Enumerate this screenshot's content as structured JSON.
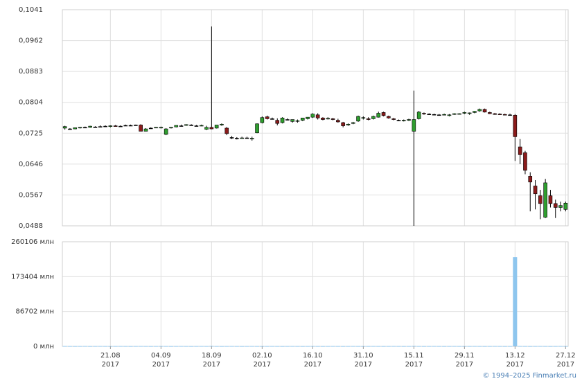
{
  "chart_data": [
    {
      "type": "candlestick",
      "open": [
        0.0738,
        0.0736,
        0.0736,
        0.0739,
        0.074,
        0.074,
        0.0741,
        0.0742,
        0.0743,
        0.0742,
        0.0744,
        0.0743,
        0.0745,
        0.0745,
        0.0746,
        0.0746,
        0.073,
        0.0738,
        0.0739,
        0.0739,
        0.0722,
        0.0739,
        0.0741,
        0.0744,
        0.0745,
        0.0746,
        0.0744,
        0.0744,
        0.0735,
        0.074,
        0.0738,
        0.0746,
        0.0738,
        0.0714,
        0.0712,
        0.0712,
        0.0713,
        0.071,
        0.0726,
        0.0752,
        0.0767,
        0.0762,
        0.0758,
        0.0752,
        0.076,
        0.0755,
        0.0756,
        0.0758,
        0.0762,
        0.0766,
        0.0772,
        0.0764,
        0.0762,
        0.0762,
        0.0758,
        0.0752,
        0.0746,
        0.075,
        0.0756,
        0.0764,
        0.0762,
        0.0762,
        0.0766,
        0.0778,
        0.0768,
        0.0762,
        0.0758,
        0.0757,
        0.0758,
        0.073,
        0.0762,
        0.0776,
        0.0774,
        0.0773,
        0.0772,
        0.0772,
        0.077,
        0.0773,
        0.0774,
        0.0776,
        0.0776,
        0.0778,
        0.0782,
        0.0786,
        0.0778,
        0.0775,
        0.0774,
        0.0773,
        0.0772,
        0.0771,
        0.069,
        0.0675,
        0.0615,
        0.059,
        0.0565,
        0.051,
        0.0565,
        0.0545,
        0.0535,
        0.053
      ],
      "high": [
        0.0744,
        0.0738,
        0.0739,
        0.0741,
        0.0742,
        0.0744,
        0.0743,
        0.0745,
        0.0745,
        0.0745,
        0.0746,
        0.0745,
        0.0747,
        0.0747,
        0.0747,
        0.0748,
        0.0738,
        0.074,
        0.0741,
        0.0742,
        0.0738,
        0.0741,
        0.0745,
        0.0747,
        0.0748,
        0.0748,
        0.0746,
        0.0747,
        0.0744,
        0.0998,
        0.0746,
        0.075,
        0.0741,
        0.0718,
        0.0715,
        0.0716,
        0.0716,
        0.0716,
        0.075,
        0.0768,
        0.077,
        0.0765,
        0.0763,
        0.0766,
        0.0763,
        0.076,
        0.076,
        0.0762,
        0.0766,
        0.0776,
        0.0776,
        0.0766,
        0.0766,
        0.0764,
        0.0762,
        0.0754,
        0.075,
        0.0754,
        0.077,
        0.0768,
        0.0766,
        0.077,
        0.078,
        0.078,
        0.077,
        0.0764,
        0.076,
        0.076,
        0.0762,
        0.0834,
        0.0782,
        0.0778,
        0.0776,
        0.0775,
        0.0774,
        0.0775,
        0.0774,
        0.0776,
        0.0776,
        0.078,
        0.0778,
        0.0782,
        0.0788,
        0.0788,
        0.078,
        0.0777,
        0.0776,
        0.0775,
        0.0775,
        0.0774,
        0.071,
        0.068,
        0.0625,
        0.0605,
        0.058,
        0.0608,
        0.058,
        0.0555,
        0.055,
        0.055
      ],
      "low": [
        0.0734,
        0.0734,
        0.0735,
        0.0737,
        0.0738,
        0.0739,
        0.074,
        0.0741,
        0.0741,
        0.074,
        0.0742,
        0.0742,
        0.0744,
        0.0744,
        0.0745,
        0.073,
        0.073,
        0.0737,
        0.0738,
        0.0737,
        0.072,
        0.0737,
        0.074,
        0.0742,
        0.0744,
        0.0745,
        0.0743,
        0.0743,
        0.0733,
        0.0735,
        0.0737,
        0.0744,
        0.072,
        0.071,
        0.0709,
        0.0711,
        0.0711,
        0.0706,
        0.0725,
        0.075,
        0.076,
        0.076,
        0.0745,
        0.075,
        0.0758,
        0.0752,
        0.0752,
        0.0756,
        0.076,
        0.0764,
        0.076,
        0.0758,
        0.076,
        0.0758,
        0.0752,
        0.074,
        0.0744,
        0.0748,
        0.0754,
        0.076,
        0.0758,
        0.076,
        0.0765,
        0.0768,
        0.0762,
        0.0758,
        0.0756,
        0.0755,
        0.0756,
        0.0488,
        0.076,
        0.0772,
        0.0772,
        0.0771,
        0.077,
        0.0771,
        0.0768,
        0.0772,
        0.0773,
        0.0774,
        0.0772,
        0.0776,
        0.078,
        0.0778,
        0.0774,
        0.0772,
        0.0772,
        0.0771,
        0.0771,
        0.0654,
        0.0646,
        0.062,
        0.0525,
        0.053,
        0.0505,
        0.0508,
        0.0535,
        0.0508,
        0.0525,
        0.0525
      ],
      "close": [
        0.0742,
        0.0736,
        0.0739,
        0.074,
        0.074,
        0.0743,
        0.0741,
        0.0742,
        0.0743,
        0.0744,
        0.0742,
        0.0743,
        0.0745,
        0.0745,
        0.0746,
        0.073,
        0.0736,
        0.0738,
        0.074,
        0.074,
        0.0736,
        0.074,
        0.0745,
        0.0744,
        0.0747,
        0.0746,
        0.0744,
        0.0745,
        0.074,
        0.0736,
        0.0746,
        0.0748,
        0.0724,
        0.0714,
        0.0712,
        0.0713,
        0.0713,
        0.0712,
        0.0749,
        0.0765,
        0.0762,
        0.0762,
        0.075,
        0.0764,
        0.076,
        0.076,
        0.0757,
        0.0764,
        0.0766,
        0.0774,
        0.0764,
        0.076,
        0.0763,
        0.076,
        0.0754,
        0.0744,
        0.0748,
        0.0752,
        0.0768,
        0.0765,
        0.076,
        0.0768,
        0.0776,
        0.077,
        0.0764,
        0.076,
        0.0758,
        0.0758,
        0.076,
        0.076,
        0.0779,
        0.0775,
        0.0774,
        0.0773,
        0.0772,
        0.0773,
        0.0772,
        0.0775,
        0.0775,
        0.0778,
        0.0777,
        0.0781,
        0.0786,
        0.0779,
        0.0775,
        0.0773,
        0.0773,
        0.0772,
        0.0772,
        0.0716,
        0.067,
        0.063,
        0.06,
        0.057,
        0.0545,
        0.0598,
        0.0545,
        0.0535,
        0.054,
        0.0546
      ],
      "up_color": "#2f9e2f",
      "down_color": "#8b1b1b",
      "ylim": [
        0.0488,
        0.1041
      ],
      "yticks": [
        {
          "value": 0.0488,
          "label": "0,0488"
        },
        {
          "value": 0.0567,
          "label": "0,0567"
        },
        {
          "value": 0.0646,
          "label": "0,0646"
        },
        {
          "value": 0.0725,
          "label": "0,0725"
        },
        {
          "value": 0.0804,
          "label": "0,0804"
        },
        {
          "value": 0.0883,
          "label": "0,0883"
        },
        {
          "value": 0.0962,
          "label": "0,0962"
        },
        {
          "value": 0.1041,
          "label": "0,1041"
        }
      ],
      "grid": true
    },
    {
      "type": "bar",
      "categories": [
        null,
        null,
        null,
        null,
        null,
        null,
        null,
        null,
        null,
        [
          "21.08",
          "2017"
        ],
        null,
        null,
        null,
        null,
        null,
        null,
        null,
        null,
        null,
        [
          "04.09",
          "2017"
        ],
        null,
        null,
        null,
        null,
        null,
        null,
        null,
        null,
        null,
        [
          "18.09",
          "2017"
        ],
        null,
        null,
        null,
        null,
        null,
        null,
        null,
        null,
        null,
        [
          "02.10",
          "2017"
        ],
        null,
        null,
        null,
        null,
        null,
        null,
        null,
        null,
        null,
        [
          "16.10",
          "2017"
        ],
        null,
        null,
        null,
        null,
        null,
        null,
        null,
        null,
        null,
        [
          "31.10",
          "2017"
        ],
        null,
        null,
        null,
        null,
        null,
        null,
        null,
        null,
        null,
        [
          "15.11",
          "2017"
        ],
        null,
        null,
        null,
        null,
        null,
        null,
        null,
        null,
        null,
        [
          "29.11",
          "2017"
        ],
        null,
        null,
        null,
        null,
        null,
        null,
        null,
        null,
        null,
        [
          "13.12",
          "2017"
        ],
        null,
        null,
        null,
        null,
        null,
        null,
        null,
        null,
        null,
        [
          "27.12",
          "2017"
        ]
      ],
      "values": [
        900,
        800,
        700,
        800,
        900,
        700,
        800,
        900,
        800,
        700,
        800,
        900,
        800,
        700,
        800,
        900,
        800,
        700,
        800,
        900,
        800,
        700,
        800,
        900,
        800,
        700,
        800,
        900,
        800,
        1200,
        800,
        700,
        800,
        900,
        800,
        700,
        800,
        900,
        800,
        700,
        800,
        900,
        800,
        700,
        800,
        900,
        800,
        700,
        800,
        900,
        800,
        700,
        800,
        900,
        800,
        700,
        800,
        900,
        800,
        700,
        800,
        900,
        800,
        700,
        800,
        900,
        800,
        700,
        800,
        1200,
        800,
        700,
        800,
        900,
        800,
        700,
        800,
        900,
        800,
        700,
        800,
        900,
        800,
        700,
        800,
        900,
        800,
        700,
        800,
        222000,
        900,
        800,
        700,
        800,
        900,
        800,
        700,
        800,
        900,
        800
      ],
      "color": "#8ec6ee",
      "ylim": [
        0,
        260106
      ],
      "yticks": [
        {
          "value": 0,
          "label": "0 млн"
        },
        {
          "value": 86702,
          "label": "86702 млн"
        },
        {
          "value": 173404,
          "label": "173404 млн"
        },
        {
          "value": 260106,
          "label": "260106 млн"
        }
      ],
      "grid": true
    }
  ],
  "footer": "© 1994–2025 Finmarket.ru"
}
